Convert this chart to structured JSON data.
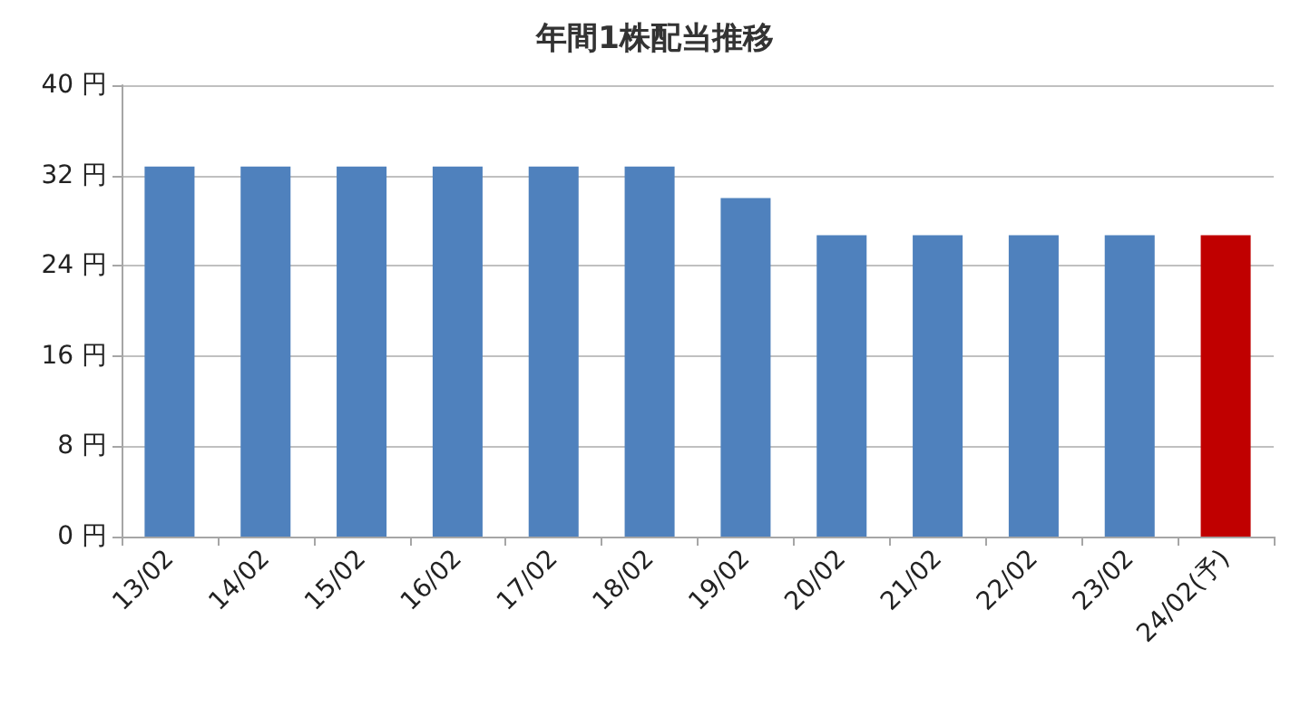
{
  "chart_data": {
    "type": "bar",
    "title": "年間1株配当推移",
    "categories": [
      "13/02",
      "14/02",
      "15/02",
      "16/02",
      "17/02",
      "18/02",
      "19/02",
      "20/02",
      "21/02",
      "22/02",
      "23/02",
      "24/02(予)"
    ],
    "values": [
      32.8,
      32.8,
      32.8,
      32.8,
      32.8,
      32.8,
      30,
      26.7,
      26.7,
      26.7,
      26.7,
      26.7
    ],
    "colors": [
      "#4f81bd",
      "#4f81bd",
      "#4f81bd",
      "#4f81bd",
      "#4f81bd",
      "#4f81bd",
      "#4f81bd",
      "#4f81bd",
      "#4f81bd",
      "#4f81bd",
      "#4f81bd",
      "#c00000"
    ],
    "ylim": [
      0,
      40
    ],
    "yticks": [
      {
        "value": 0,
        "label": "0 円"
      },
      {
        "value": 8,
        "label": "8 円"
      },
      {
        "value": 16,
        "label": "16 円"
      },
      {
        "value": 24,
        "label": "24 円"
      },
      {
        "value": 32,
        "label": "32 円"
      },
      {
        "value": 40,
        "label": "40 円"
      }
    ],
    "grid": "y"
  }
}
